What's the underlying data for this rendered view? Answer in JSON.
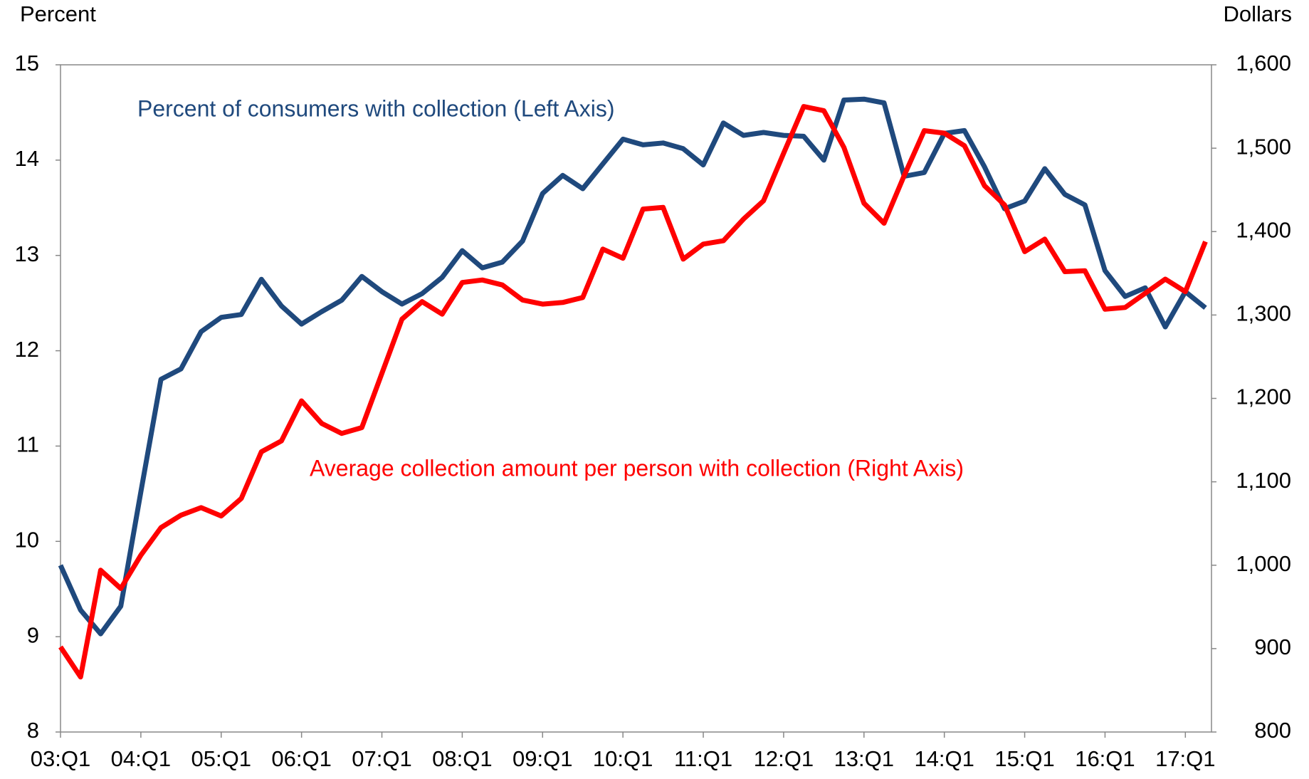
{
  "chart_data": {
    "type": "line",
    "y_axis_title": "Percent",
    "y2_axis_title": "Dollars",
    "categories": [
      "03:Q1",
      null,
      null,
      null,
      "04:Q1",
      null,
      null,
      null,
      "05:Q1",
      null,
      null,
      null,
      "06:Q1",
      null,
      null,
      null,
      "07:Q1",
      null,
      null,
      null,
      "08:Q1",
      null,
      null,
      null,
      "09:Q1",
      null,
      null,
      null,
      "10:Q1",
      null,
      null,
      null,
      "11:Q1",
      null,
      null,
      null,
      "12:Q1",
      null,
      null,
      null,
      "13:Q1",
      null,
      null,
      null,
      "14:Q1",
      null,
      null,
      null,
      "15:Q1",
      null,
      null,
      null,
      "16:Q1",
      null,
      null,
      null,
      "17:Q1",
      null
    ],
    "ylim": [
      8,
      15
    ],
    "yticks": [
      8,
      9,
      10,
      11,
      12,
      13,
      14,
      15
    ],
    "y2lim": [
      800,
      1600
    ],
    "y2ticks": [
      {
        "value": 800,
        "label": "800"
      },
      {
        "value": 900,
        "label": "900"
      },
      {
        "value": 1000,
        "label": "1,000"
      },
      {
        "value": 1100,
        "label": "1,100"
      },
      {
        "value": 1200,
        "label": "1,200"
      },
      {
        "value": 1300,
        "label": "1,300"
      },
      {
        "value": 1400,
        "label": "1,400"
      },
      {
        "value": 1500,
        "label": "1,500"
      },
      {
        "value": 1600,
        "label": "1,600"
      }
    ],
    "series": [
      {
        "name": "Percent of consumers with collection (Left Axis)",
        "color": "#1f497d",
        "axis": "y",
        "values": [
          9.75,
          9.28,
          9.03,
          9.32,
          10.52,
          11.7,
          11.81,
          12.2,
          12.35,
          12.38,
          12.75,
          12.47,
          12.28,
          12.41,
          12.53,
          12.78,
          12.62,
          12.49,
          12.6,
          12.77,
          13.05,
          12.87,
          12.93,
          13.15,
          13.65,
          13.84,
          13.7,
          13.96,
          14.22,
          14.16,
          14.18,
          14.12,
          13.95,
          14.39,
          14.26,
          14.29,
          14.26,
          14.25,
          14.0,
          14.63,
          14.64,
          14.6,
          13.83,
          13.87,
          14.28,
          14.31,
          13.93,
          13.49,
          13.57,
          13.91,
          13.64,
          13.53,
          12.84,
          12.57,
          12.66,
          12.25,
          12.62,
          12.45
        ]
      },
      {
        "name": "Average collection amount per person with collection (Right Axis)",
        "color": "#ff0000",
        "axis": "y2",
        "values": [
          902,
          866,
          994,
          972,
          1012,
          1045,
          1060,
          1069,
          1059,
          1080,
          1136,
          1149,
          1197,
          1170,
          1158,
          1165,
          1230,
          1295,
          1316,
          1301,
          1339,
          1342,
          1336,
          1318,
          1313,
          1315,
          1321,
          1379,
          1368,
          1427,
          1429,
          1367,
          1385,
          1389,
          1415,
          1437,
          1494,
          1550,
          1545,
          1501,
          1434,
          1410,
          1467,
          1521,
          1518,
          1503,
          1455,
          1432,
          1376,
          1391,
          1352,
          1353,
          1307,
          1309,
          1326,
          1343,
          1328,
          1388
        ]
      }
    ]
  }
}
